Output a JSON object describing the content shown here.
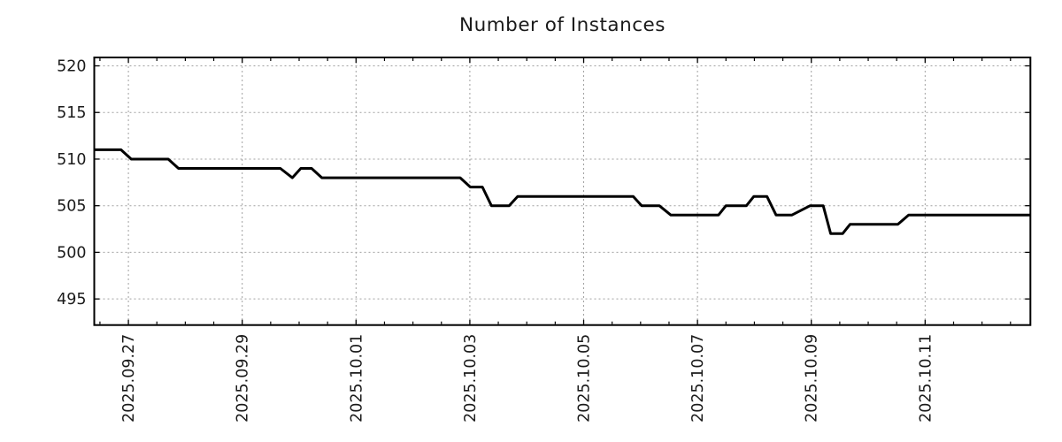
{
  "chart_data": {
    "type": "line",
    "title": "Number of Instances",
    "x_axis": {
      "tick_labels": [
        "2025.09.27",
        "2025.09.29",
        "2025.10.01",
        "2025.10.03",
        "2025.10.05",
        "2025.10.07",
        "2025.10.09",
        "2025.10.11"
      ],
      "tick_day_offsets_from_2025_09_27": [
        0,
        2,
        4,
        6,
        8,
        10,
        12,
        14
      ],
      "minor_tick_step_days": 0.5,
      "xlim_days": [
        -0.6,
        15.85
      ],
      "label_rotation_deg": -90
    },
    "y_axis": {
      "ticks": [
        495,
        500,
        505,
        510,
        515,
        520
      ],
      "ylim": [
        492.2,
        520.9
      ]
    },
    "grid": true,
    "legend": "none",
    "series": [
      {
        "name": "instances",
        "color": "#000000",
        "points_day_value": [
          [
            -0.6,
            511
          ],
          [
            -0.13,
            511
          ],
          [
            0.05,
            510
          ],
          [
            0.7,
            510
          ],
          [
            0.88,
            509
          ],
          [
            2.67,
            509
          ],
          [
            2.88,
            508
          ],
          [
            3.03,
            509
          ],
          [
            3.22,
            509
          ],
          [
            3.4,
            508
          ],
          [
            5.83,
            508
          ],
          [
            6.01,
            507
          ],
          [
            6.22,
            507
          ],
          [
            6.38,
            505
          ],
          [
            6.69,
            505
          ],
          [
            6.84,
            506
          ],
          [
            8.87,
            506
          ],
          [
            9.02,
            505
          ],
          [
            9.33,
            505
          ],
          [
            9.53,
            504
          ],
          [
            10.37,
            504
          ],
          [
            10.5,
            505
          ],
          [
            10.86,
            505
          ],
          [
            10.99,
            506
          ],
          [
            11.22,
            506
          ],
          [
            11.38,
            504
          ],
          [
            11.66,
            504
          ],
          [
            11.98,
            505
          ],
          [
            12.21,
            505
          ],
          [
            12.34,
            502
          ],
          [
            12.55,
            502
          ],
          [
            12.68,
            503
          ],
          [
            13.52,
            503
          ],
          [
            13.71,
            504
          ],
          [
            15.85,
            504
          ]
        ]
      }
    ],
    "colors": {
      "line": "#000000",
      "grid": "#a0a0a0",
      "axis": "#000000",
      "text": "#1a1a1a",
      "background": "#ffffff"
    }
  }
}
